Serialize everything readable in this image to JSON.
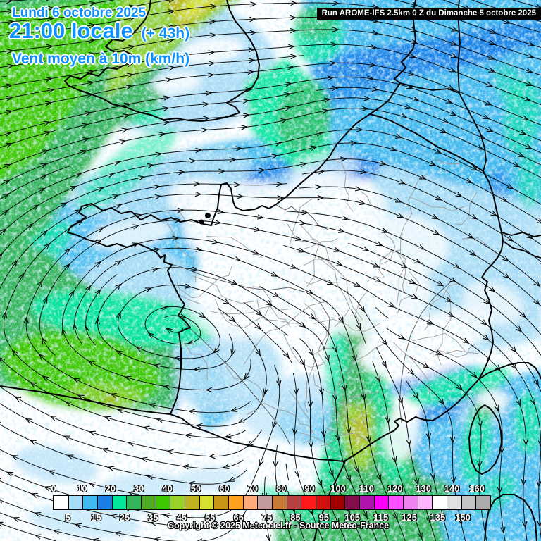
{
  "header": {
    "date": "Lundi 6 octobre 2025",
    "time": "21:00 locale",
    "offset": "(+ 43h)",
    "variable": "Vent moyen à 10m (km/h)"
  },
  "run_bar": "Run AROME-IFS 2.5km 0 Z du Dimanche 5 octobre 2025",
  "copyright": "Copyright © 2025 Meteociel.fr - Source Meteo-France",
  "colors": {
    "header_text": "#0D90FF",
    "run_bar_bg": "#000000",
    "run_bar_text": "#FFFFFF",
    "label_text": "#FFFFFF",
    "streamline": "#000000",
    "coastline": "#000000",
    "department_line": "#9A9A9A"
  },
  "legend": {
    "top_labels": [
      "0",
      "10",
      "20",
      "30",
      "40",
      "50",
      "60",
      "70",
      "80",
      "90",
      "100",
      "110",
      "120",
      "130",
      "140",
      "160"
    ],
    "bottom_labels": [
      "5",
      "15",
      "25",
      "35",
      "45",
      "55",
      "65",
      "75",
      "85",
      "95",
      "105",
      "115",
      "125",
      "135",
      "150"
    ],
    "cell_colors": [
      "#FFFFFF",
      "#A9DCF6",
      "#3FB9EF",
      "#1980E8",
      "#00E69B",
      "#32B45A",
      "#50AA28",
      "#3CC800",
      "#96D229",
      "#BEB41E",
      "#D7E12D",
      "#C89614",
      "#FFA01E",
      "#FFAA78",
      "#C39B9B",
      "#C87837",
      "#B94141",
      "#FF1919",
      "#D21010",
      "#A00000",
      "#820F4B",
      "#AF14AF",
      "#FA00FA",
      "#FF50FF",
      "#EE82EE",
      "#FFB4FF",
      "#FFFFFF",
      "#E1E1E1",
      "#C3C3C3",
      "#ABABAB"
    ]
  }
}
